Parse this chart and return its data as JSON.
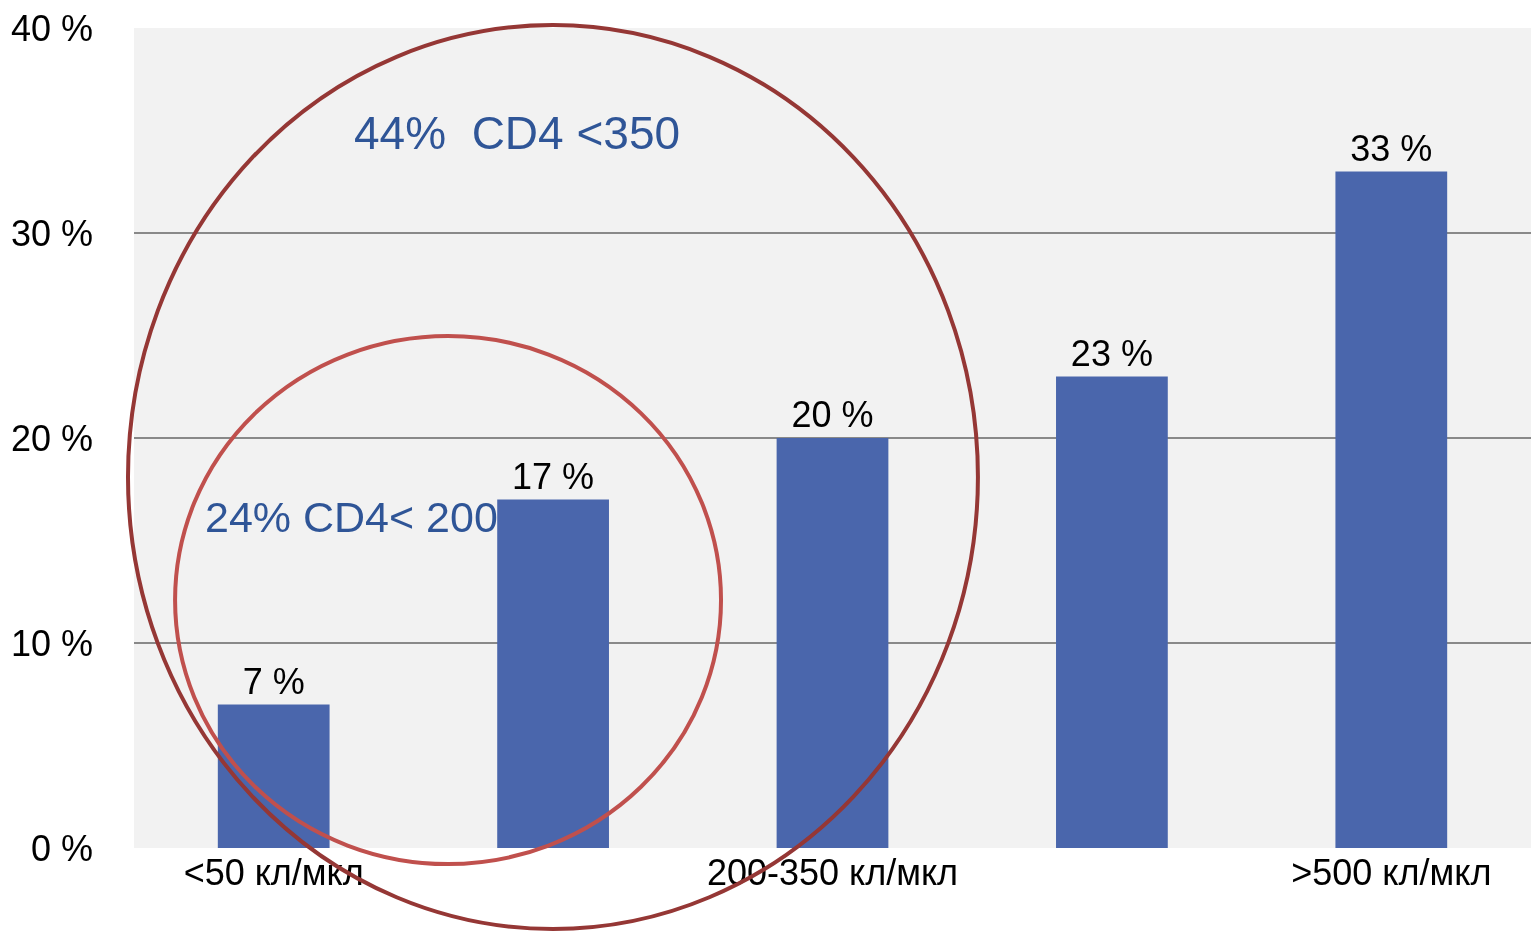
{
  "chart_data": {
    "type": "bar",
    "categories": [
      "˂50 кл/мкл",
      null,
      "200-350 кл/мкл",
      null,
      ">500 кл/мкл"
    ],
    "values": [
      7,
      17,
      20,
      23,
      33
    ],
    "color": "#4a66ac",
    "value_labels": [
      "7 %",
      "17 %",
      "20 %",
      "23 %",
      "33 %"
    ],
    "ylim": [
      0,
      40
    ],
    "yticks": [
      {
        "value": 0,
        "label": "0 %"
      },
      {
        "value": 10,
        "label": "10 %"
      },
      {
        "value": 20,
        "label": "20 %"
      },
      {
        "value": 30,
        "label": "30 %"
      },
      {
        "value": 40,
        "label": "40 %"
      }
    ],
    "grid": "y",
    "annotations": [
      "44%  CD4 <350",
      "24% CD4< 200"
    ]
  }
}
